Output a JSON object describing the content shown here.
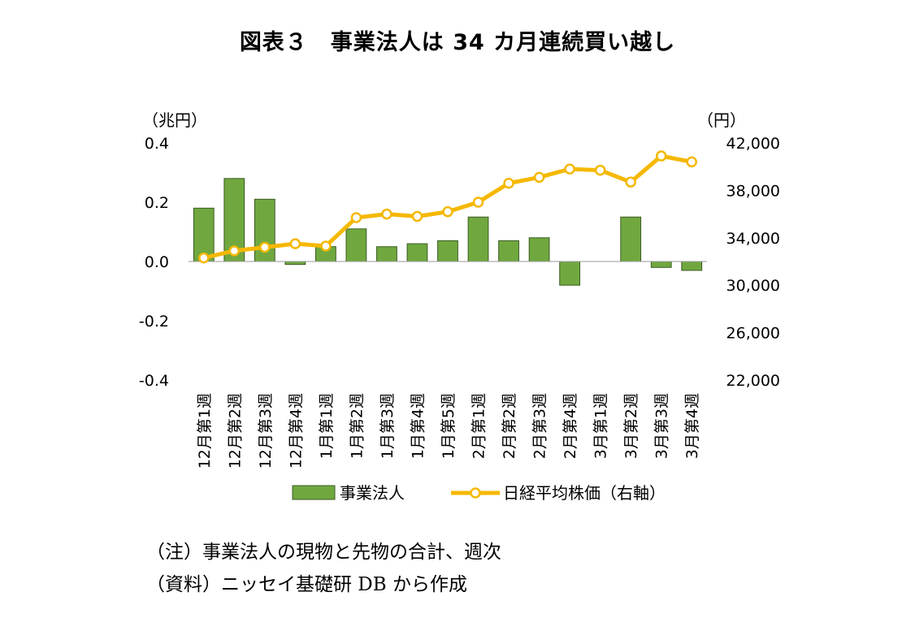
{
  "title": "図表３　事業法人は 34 カ月連続買い越し",
  "notes": {
    "note": "（注）事業法人の現物と先物の合計、週次",
    "source": "（資料）ニッセイ基礎研 DB から作成"
  },
  "colors": {
    "bar_fill": "#70a83f",
    "bar_stroke": "#3a5a20",
    "line": "#f5b800",
    "marker_fill": "#ffffff"
  },
  "chart_data": {
    "type": "bar",
    "categories": [
      "12月第1週",
      "12月第2週",
      "12月第3週",
      "12月第4週",
      "1月第1週",
      "1月第2週",
      "1月第3週",
      "1月第4週",
      "1月第5週",
      "2月第1週",
      "2月第2週",
      "2月第3週",
      "2月第4週",
      "3月第1週",
      "3月第2週",
      "3月第3週",
      "3月第4週"
    ],
    "series": [
      {
        "name": "事業法人",
        "type": "bar",
        "axis": "left",
        "values": [
          0.18,
          0.28,
          0.21,
          -0.01,
          0.05,
          0.11,
          0.05,
          0.06,
          0.07,
          0.15,
          0.07,
          0.08,
          -0.08,
          0.0,
          0.15,
          -0.02,
          -0.03
        ]
      },
      {
        "name": "日経平均株価（右軸）",
        "type": "line",
        "axis": "right",
        "values": [
          32300,
          32900,
          33200,
          33500,
          33300,
          35700,
          36000,
          35800,
          36200,
          37000,
          38600,
          39100,
          39800,
          39700,
          38700,
          40900,
          40400
        ]
      }
    ],
    "y_left": {
      "unit": "（兆円）",
      "ylim": [
        -0.4,
        0.4
      ],
      "ticks": [
        "0.4",
        "0.2",
        "0.0",
        "-0.2",
        "-0.4"
      ]
    },
    "y_right": {
      "unit": "（円）",
      "ylim": [
        22000,
        42000
      ],
      "ticks": [
        "42,000",
        "38,000",
        "34,000",
        "30,000",
        "26,000",
        "22,000"
      ]
    },
    "grid": false,
    "legend_position": "bottom"
  }
}
